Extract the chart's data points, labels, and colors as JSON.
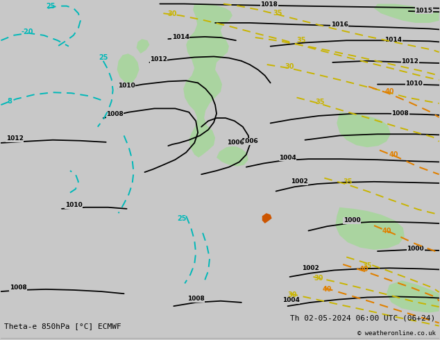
{
  "title_left": "Theta-e 850hPa [°C] ECMWF",
  "title_right": "Th 02-05-2024 06:00 UTC (06+24)",
  "copyright": "© weatheronline.co.uk",
  "bg_color": "#c8c8c8",
  "map_bg": "#c8c8c8",
  "green_fill": "#aad4a0",
  "figsize": [
    6.34,
    4.9
  ],
  "dpi": 100,
  "pressure_color": "#000000",
  "theta_yellow_color": "#c8b400",
  "theta_orange_color": "#e08000",
  "theta_cyan_color": "#00b8b8",
  "font_size_bottom": 8
}
